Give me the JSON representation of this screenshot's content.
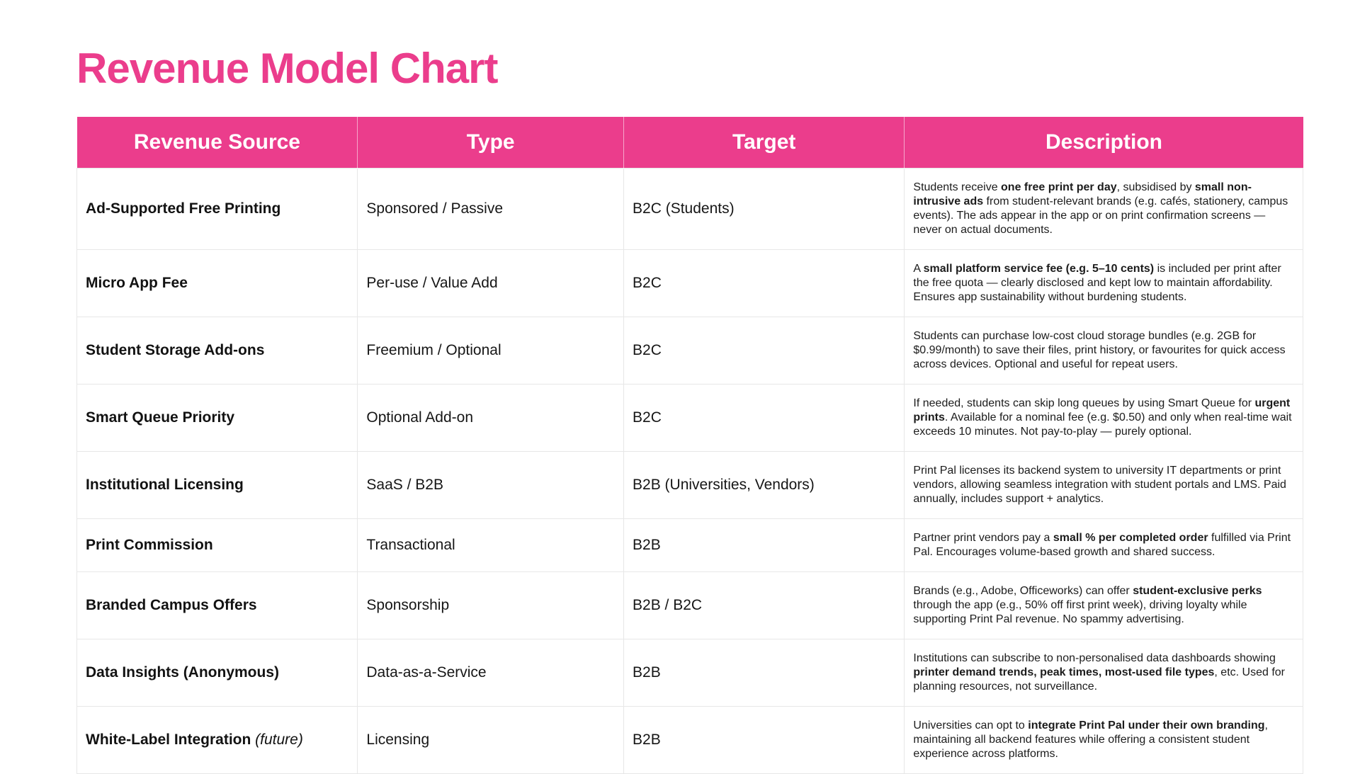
{
  "page": {
    "title": "Revenue Model Chart"
  },
  "theme": {
    "accent": "#EB3D8C",
    "header_text": "#FFFFFF",
    "border": "#E7E7E7",
    "background": "#FFFFFF"
  },
  "table": {
    "columns": [
      "Revenue Source",
      "Type",
      "Target",
      "Description"
    ],
    "rows": [
      {
        "source": "Ad-Supported Free Printing",
        "source_note": "",
        "type": "Sponsored / Passive",
        "target": "B2C (Students)",
        "description": [
          {
            "t": "Students receive "
          },
          {
            "t": "one free print per day",
            "b": true
          },
          {
            "t": ", subsidised by "
          },
          {
            "t": "small non-intrusive ads",
            "b": true
          },
          {
            "t": " from student-relevant brands (e.g. cafés, stationery, campus events). The ads appear in the app or on print confirmation screens — never on actual documents."
          }
        ]
      },
      {
        "source": "Micro App Fee",
        "source_note": "",
        "type": "Per-use / Value Add",
        "target": "B2C",
        "description": [
          {
            "t": "A "
          },
          {
            "t": "small platform service fee (e.g. 5–10 cents)",
            "b": true
          },
          {
            "t": " is included per print after the free quota — clearly disclosed and kept low to maintain affordability. Ensures app sustainability without burdening students."
          }
        ]
      },
      {
        "source": "Student Storage Add-ons",
        "source_note": "",
        "type": "Freemium / Optional",
        "target": "B2C",
        "description": [
          {
            "t": "Students can purchase low-cost cloud storage bundles (e.g. 2GB for $0.99/month) to save their files, print history, or favourites for quick access across devices. Optional and useful for repeat users."
          }
        ]
      },
      {
        "source": "Smart Queue Priority",
        "source_note": "",
        "type": "Optional Add-on",
        "target": "B2C",
        "description": [
          {
            "t": "If needed, students can skip long queues by using Smart Queue for "
          },
          {
            "t": "urgent prints",
            "b": true
          },
          {
            "t": ". Available for a nominal fee (e.g. $0.50) and only when real-time wait exceeds 10 minutes. Not pay-to-play — purely optional."
          }
        ]
      },
      {
        "source": "Institutional Licensing",
        "source_note": "",
        "type": "SaaS / B2B",
        "target": "B2B (Universities, Vendors)",
        "description": [
          {
            "t": "Print Pal licenses its backend system to university IT departments or print vendors, allowing seamless integration with student portals and LMS. Paid annually, includes support + analytics."
          }
        ]
      },
      {
        "source": "Print Commission",
        "source_note": "",
        "type": "Transactional",
        "target": "B2B",
        "description": [
          {
            "t": "Partner print vendors pay a "
          },
          {
            "t": "small % per completed order",
            "b": true
          },
          {
            "t": " fulfilled via Print Pal. Encourages volume-based growth and shared success."
          }
        ]
      },
      {
        "source": "Branded Campus Offers",
        "source_note": "",
        "type": "Sponsorship",
        "target": "B2B / B2C",
        "description": [
          {
            "t": "Brands (e.g., Adobe, Officeworks) can offer "
          },
          {
            "t": "student-exclusive perks",
            "b": true
          },
          {
            "t": " through the app (e.g., 50% off first print week), driving loyalty while supporting Print Pal revenue. No spammy advertising."
          }
        ]
      },
      {
        "source": "Data Insights (Anonymous)",
        "source_note": "",
        "type": "Data-as-a-Service",
        "target": "B2B",
        "description": [
          {
            "t": "Institutions can subscribe to non-personalised data dashboards showing "
          },
          {
            "t": "printer demand trends, peak times, most-used file types",
            "b": true
          },
          {
            "t": ", etc. Used for planning resources, not surveillance."
          }
        ]
      },
      {
        "source": "White-Label Integration",
        "source_note": "(future)",
        "type": "Licensing",
        "target": "B2B",
        "description": [
          {
            "t": "Universities can opt to "
          },
          {
            "t": "integrate Print Pal under their own branding",
            "b": true
          },
          {
            "t": ", maintaining all backend features while offering a consistent student experience across platforms."
          }
        ]
      }
    ]
  }
}
